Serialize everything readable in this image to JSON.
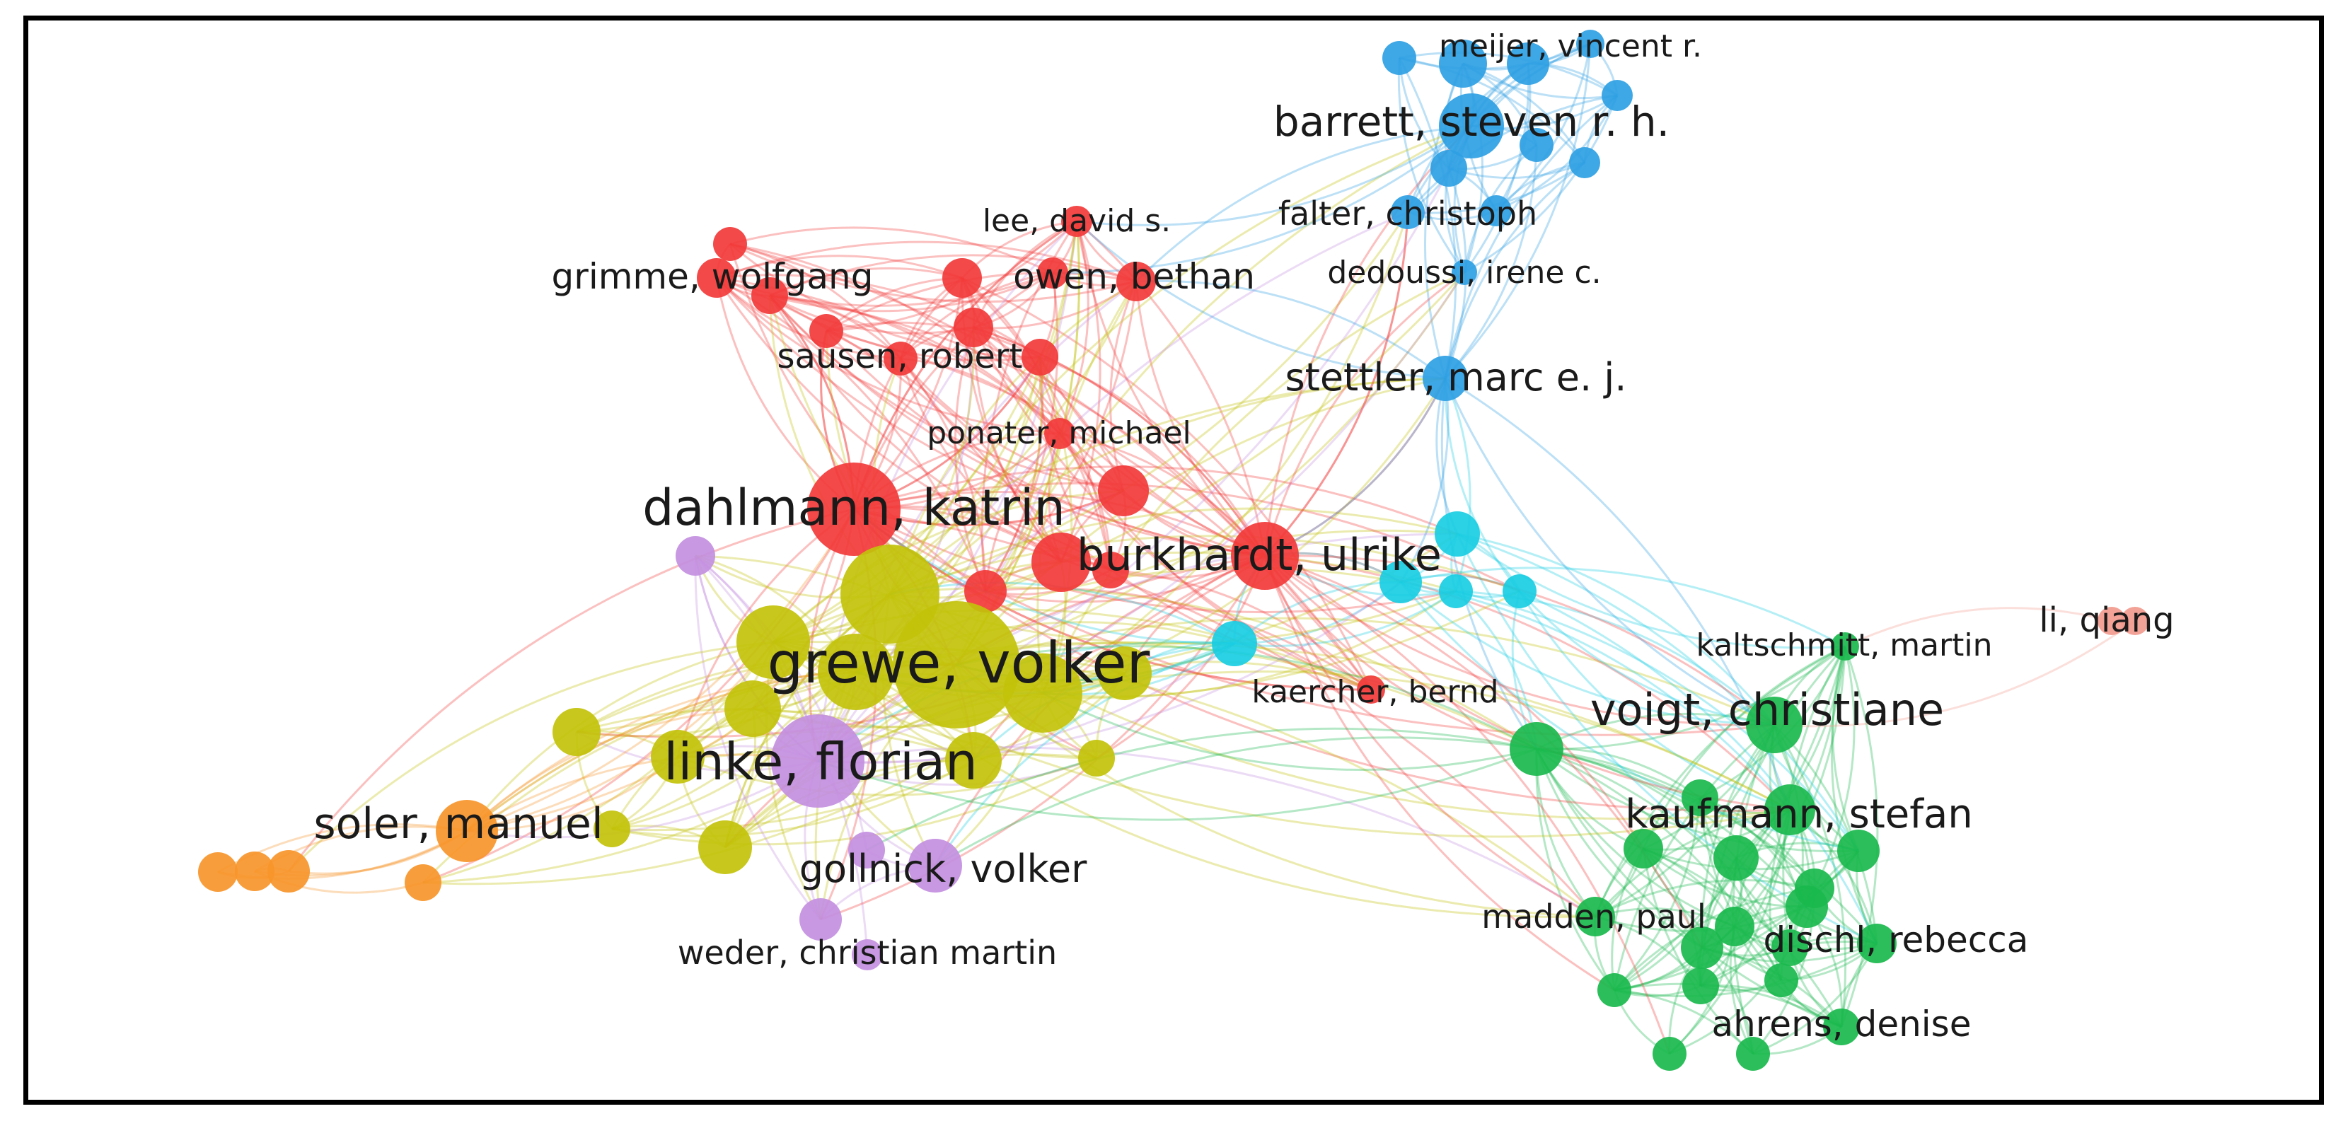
{
  "network": {
    "clusters": [
      {
        "id": "red",
        "color": "#f23a3a"
      },
      {
        "id": "yellow",
        "color": "#c2c20a"
      },
      {
        "id": "purple",
        "color": "#c38fe0"
      },
      {
        "id": "orange",
        "color": "#f7952a"
      },
      {
        "id": "blue",
        "color": "#2e9fe3"
      },
      {
        "id": "cyan",
        "color": "#19cde2"
      },
      {
        "id": "green",
        "color": "#1ab84d"
      },
      {
        "id": "pink",
        "color": "#f29a8e"
      }
    ],
    "labeled_nodes": [
      {
        "name": "barrett, steven r. h.",
        "cluster": "blue"
      },
      {
        "name": "meijer, vincent r.",
        "cluster": "blue"
      },
      {
        "name": "falter, christoph",
        "cluster": "blue"
      },
      {
        "name": "dedoussi, irene c.",
        "cluster": "blue"
      },
      {
        "name": "stettler, marc e. j.",
        "cluster": "blue"
      },
      {
        "name": "lee, david s.",
        "cluster": "red"
      },
      {
        "name": "grimme, wolfgang",
        "cluster": "red"
      },
      {
        "name": "owen, bethan",
        "cluster": "red"
      },
      {
        "name": "sausen, robert",
        "cluster": "red"
      },
      {
        "name": "ponater, michael",
        "cluster": "red"
      },
      {
        "name": "dahlmann, katrin",
        "cluster": "red"
      },
      {
        "name": "burkhardt, ulrike",
        "cluster": "red"
      },
      {
        "name": "kaercher, bernd",
        "cluster": "red"
      },
      {
        "name": "grewe, volker",
        "cluster": "yellow"
      },
      {
        "name": "linke, florian",
        "cluster": "purple"
      },
      {
        "name": "gollnick, volker",
        "cluster": "purple"
      },
      {
        "name": "weder, christian martin",
        "cluster": "purple"
      },
      {
        "name": "soler, manuel",
        "cluster": "orange"
      },
      {
        "name": "voigt, christiane",
        "cluster": "green"
      },
      {
        "name": "kaltschmitt, martin",
        "cluster": "green"
      },
      {
        "name": "kaufmann, stefan",
        "cluster": "green"
      },
      {
        "name": "madden, paul",
        "cluster": "green"
      },
      {
        "name": "dischl, rebecca",
        "cluster": "green"
      },
      {
        "name": "ahrens, denise",
        "cluster": "green"
      },
      {
        "name": "li, qiang",
        "cluster": "pink"
      }
    ]
  }
}
